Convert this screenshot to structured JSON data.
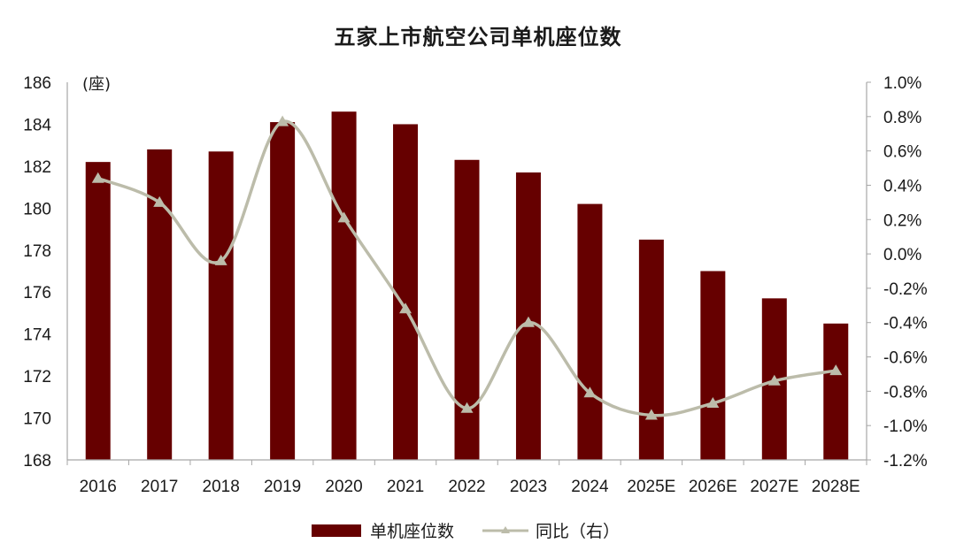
{
  "title": "五家上市航空公司单机座位数",
  "colors": {
    "bar": "#660000",
    "line": "#BCBCAA",
    "axis": "#A6A6A6"
  },
  "legend": {
    "bar_label": "单机座位数",
    "line_label": "同比（右）"
  },
  "chart_data": {
    "type": "bar",
    "title": "五家上市航空公司单机座位数",
    "xlabel": "",
    "ylabel": "(座)",
    "y2label": "",
    "categories": [
      "2016",
      "2017",
      "2018",
      "2019",
      "2020",
      "2021",
      "2022",
      "2023",
      "2024",
      "2025E",
      "2026E",
      "2027E",
      "2028E"
    ],
    "series": [
      {
        "name": "单机座位数",
        "type": "bar",
        "axis": "left",
        "values": [
          182.2,
          182.8,
          182.7,
          184.1,
          184.6,
          184.0,
          182.3,
          181.7,
          180.2,
          178.5,
          177.0,
          175.7,
          174.5
        ]
      },
      {
        "name": "同比（右）",
        "type": "line",
        "axis": "right",
        "marker": "triangle",
        "smooth": true,
        "values": [
          0.44,
          0.3,
          -0.04,
          0.77,
          0.21,
          -0.32,
          -0.9,
          -0.4,
          -0.81,
          -0.94,
          -0.87,
          -0.74,
          -0.68
        ]
      }
    ],
    "ylim": [
      168,
      186
    ],
    "yticks": [
      168,
      170,
      172,
      174,
      176,
      178,
      180,
      182,
      184,
      186
    ],
    "y2lim": [
      -1.2,
      1.0
    ],
    "y2ticks": [
      "-1.2%",
      "-1.0%",
      "-0.8%",
      "-0.6%",
      "-0.4%",
      "-0.2%",
      "0.0%",
      "0.2%",
      "0.4%",
      "0.6%",
      "0.8%",
      "1.0%"
    ],
    "grid": false,
    "legend_position": "bottom"
  }
}
